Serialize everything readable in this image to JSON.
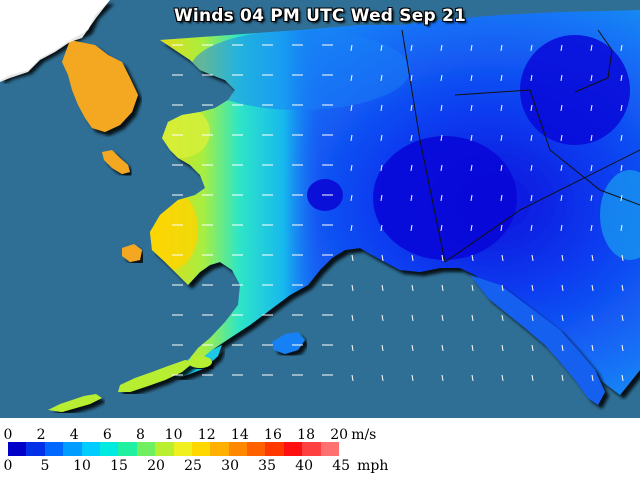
{
  "map": {
    "title": "Winds 04 PM UTC Wed Sep 21",
    "region": "Alaska",
    "colors": {
      "ocean": "#2f6f95",
      "land_outside": "#ffffff",
      "calm": "#0a0ae0",
      "light": "#1565f5",
      "moderate": "#17b6ef",
      "breezy": "#25e8cf",
      "fresh": "#c8f03a",
      "strong": "#ffd400",
      "gale": "#f4a820"
    }
  },
  "legend": {
    "ms_ticks": [
      "0",
      "2",
      "4",
      "6",
      "8",
      "10",
      "12",
      "14",
      "16",
      "18",
      "20"
    ],
    "ms_unit": "m/s",
    "mph_ticks": [
      "0",
      "5",
      "10",
      "15",
      "20",
      "25",
      "30",
      "35",
      "40",
      "45"
    ],
    "mph_unit": "mph",
    "colors": [
      "#0000c8",
      "#0030e8",
      "#0068ff",
      "#009cff",
      "#00ccff",
      "#00eae0",
      "#20f0a0",
      "#70f060",
      "#b8f030",
      "#f0f020",
      "#ffd800",
      "#ffb000",
      "#ff8800",
      "#ff6000",
      "#ff3800",
      "#ff1010",
      "#ff4040",
      "#ff7070"
    ]
  }
}
